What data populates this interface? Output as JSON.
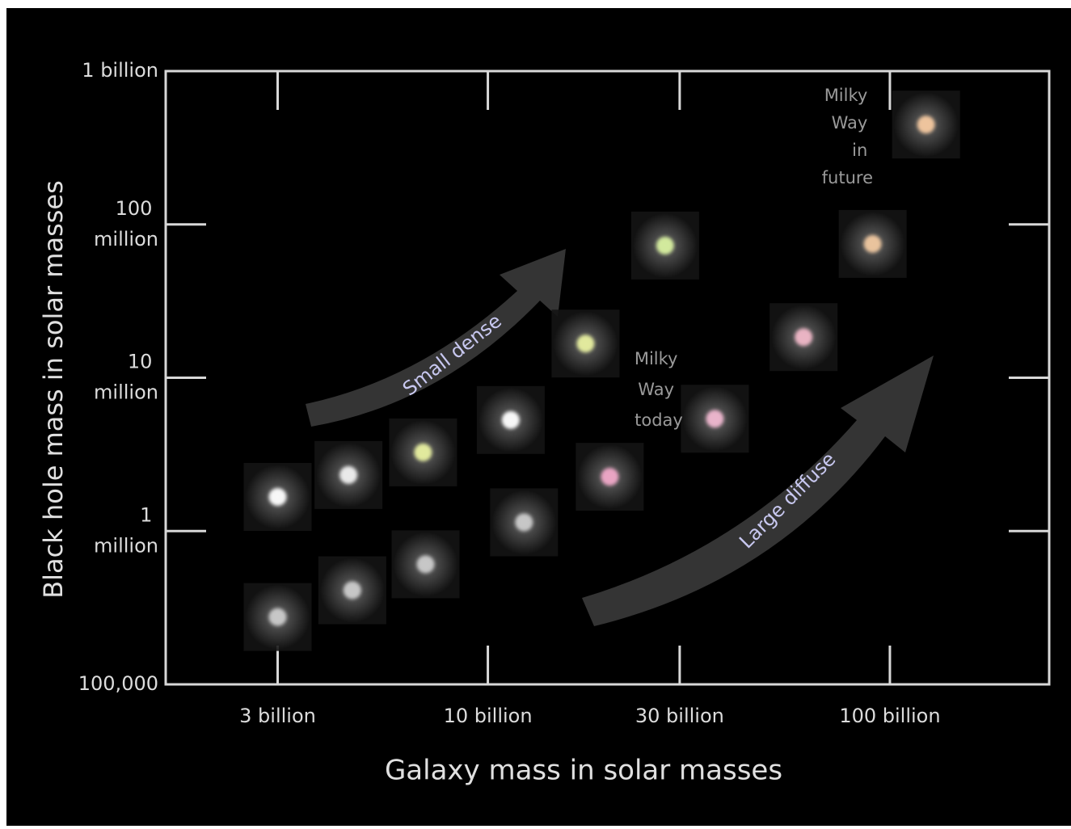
{
  "chart_data": {
    "type": "scatter",
    "xlabel": "Galaxy mass in solar masses",
    "ylabel": "Black hole mass in solar masses",
    "xscale": "log",
    "yscale": "log",
    "xlim": [
      1580000000,
      249000000000
    ],
    "ylim": [
      100000,
      1000000000
    ],
    "xticks": [
      {
        "value": 3000000000,
        "label": "3 billion"
      },
      {
        "value": 10000000000,
        "label": "10 billion"
      },
      {
        "value": 30000000000,
        "label": "30 billion"
      },
      {
        "value": 100000000000,
        "label": "100 billion"
      }
    ],
    "yticks": [
      {
        "value": 100000,
        "label": "100,000"
      },
      {
        "value": 1000000,
        "label": "1 million"
      },
      {
        "value": 10000000,
        "label": "10 million"
      },
      {
        "value": 100000000,
        "label": "100 million"
      },
      {
        "value": 1000000000,
        "label": "1 billion"
      }
    ],
    "x": [
      3000000000,
      4500000000,
      6900000000,
      11400000000,
      17500000000,
      27600000000,
      90600000000,
      123000000000,
      61000000000,
      36700000000,
      20100000000,
      12300000000,
      7000000000,
      4600000000,
      3000000000
    ],
    "y": [
      1670000,
      2320000,
      3260000,
      5300000,
      16700000,
      72800000,
      74600000,
      448000000,
      18400000,
      5400000,
      2260000,
      1140000,
      607000,
      411000,
      275000
    ],
    "colors": [
      "#ffffff",
      "#f0f0f0",
      "#e8f0a0",
      "#ffffff",
      "#e8f0a0",
      "#d8f0a0",
      "#f0c8a0",
      "#f5c9a0",
      "#f0b8c8",
      "#f0b8d0",
      "#f0a8c8",
      "#cccccc",
      "#cccccc",
      "#cccccc",
      "#cccccc"
    ],
    "annotations": [
      "Milky Way in future",
      "Milky Way today",
      "Small dense",
      "Large diffuse"
    ]
  }
}
